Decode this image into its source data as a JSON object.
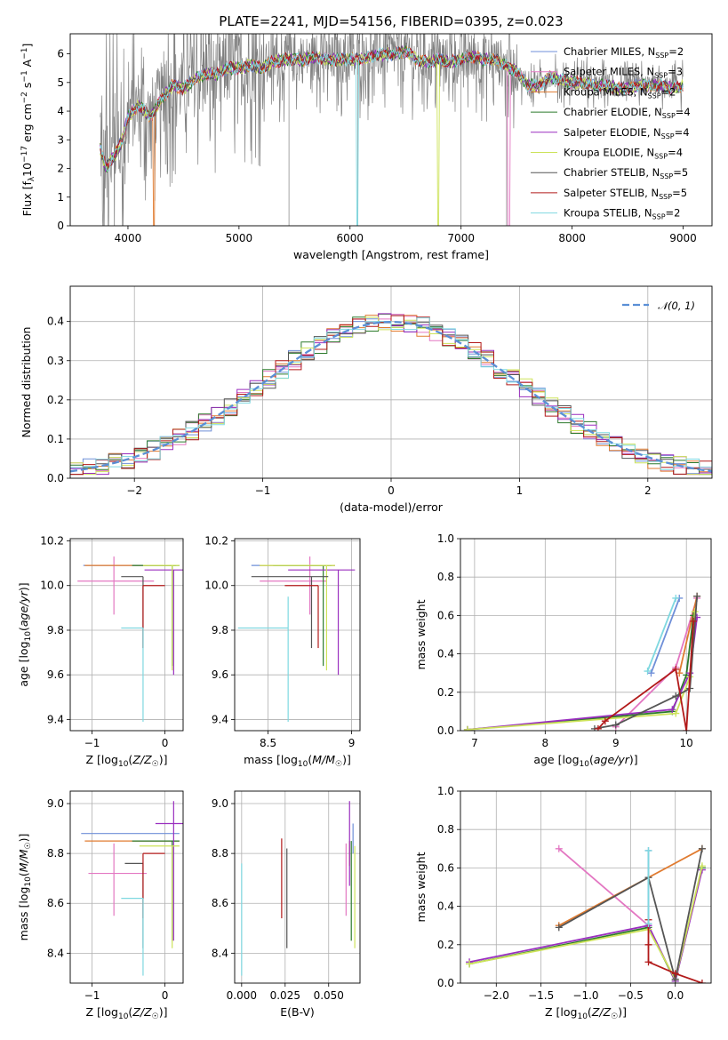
{
  "figure_title": "PLATE=2241, MJD=54156, FIBERID=0395, z=0.023",
  "models": [
    {
      "name": "Chabrier MILES",
      "nssp": "2",
      "color": "#6f8fd8"
    },
    {
      "name": "Salpeter MILES",
      "nssp": "3",
      "color": "#e377c2"
    },
    {
      "name": "Kroupa MILES",
      "nssp": "2",
      "color": "#e07b30"
    },
    {
      "name": "Chabrier ELODIE",
      "nssp": "4",
      "color": "#2c7a2c"
    },
    {
      "name": "Salpeter ELODIE",
      "nssp": "4",
      "color": "#9a2fbf"
    },
    {
      "name": "Kroupa ELODIE",
      "nssp": "4",
      "color": "#cde35a"
    },
    {
      "name": "Chabrier STELIB",
      "nssp": "5",
      "color": "#555555"
    },
    {
      "name": "Salpeter STELIB",
      "nssp": "5",
      "color": "#b21a1a"
    },
    {
      "name": "Kroupa STELIB",
      "nssp": "2",
      "color": "#7fd8e0"
    }
  ],
  "chart_data": [
    {
      "id": "spectrum",
      "type": "line",
      "xlabel": "wavelength [Angstrom, rest frame]",
      "ylabel": "Flux [f_λ 10^-17 erg cm^-2 s^-1 A^-1]",
      "xlim": [
        3480,
        9260
      ],
      "ylim": [
        0,
        6.7
      ],
      "xticks": [
        4000,
        5000,
        6000,
        7000,
        8000,
        9000
      ],
      "yticks": [
        0,
        1,
        2,
        3,
        4,
        5,
        6
      ],
      "data_color": "#808080",
      "legend_position": "upper-right",
      "model_spectrum": {
        "x": [
          3750,
          3800,
          3850,
          3900,
          3950,
          4000,
          4100,
          4200,
          4300,
          4400,
          4500,
          4600,
          4700,
          4800,
          4900,
          5000,
          5100,
          5200,
          5300,
          5400,
          5500,
          5600,
          5700,
          5800,
          5900,
          6000,
          6100,
          6200,
          6300,
          6400,
          6500,
          6600,
          6700,
          6800,
          6900,
          7000,
          7100,
          7200,
          7300,
          7400,
          7500,
          7600,
          7700,
          7800,
          7900,
          8000,
          8100,
          8200,
          8300,
          8400,
          8500,
          8600,
          8700,
          8800,
          8900,
          9000
        ],
        "y": [
          2.7,
          2.0,
          2.3,
          2.6,
          3.0,
          3.8,
          4.2,
          3.8,
          4.4,
          4.9,
          4.8,
          5.1,
          5.3,
          5.3,
          5.5,
          5.5,
          5.6,
          5.5,
          5.7,
          5.8,
          5.8,
          5.8,
          5.9,
          5.8,
          5.8,
          5.8,
          5.8,
          5.9,
          6.0,
          6.0,
          6.1,
          5.8,
          5.7,
          5.8,
          5.7,
          5.8,
          5.9,
          5.8,
          5.8,
          5.6,
          5.4,
          4.9,
          4.9,
          5.2,
          5.1,
          5.0,
          5.0,
          4.9,
          4.9,
          4.8,
          4.8,
          4.9,
          4.9,
          4.9,
          4.8,
          4.9
        ]
      },
      "model_dropouts": [
        {
          "model": "Kroupa MILES",
          "from": 4230,
          "to": 4240
        },
        {
          "model": "Kroupa STELIB",
          "from": 6060,
          "to": 6070
        },
        {
          "model": "Kroupa ELODIE",
          "from": 6790,
          "to": 6800
        },
        {
          "model": "Salpeter MILES",
          "from": 7420,
          "to": 7440
        }
      ]
    },
    {
      "id": "residuals",
      "type": "histogram",
      "xlabel": "(data-model)/error",
      "ylabel": "Normed distribution",
      "xlim": [
        -2.5,
        2.5
      ],
      "ylim": [
        0,
        0.49
      ],
      "xticks": [
        -2,
        -1,
        0,
        1,
        2
      ],
      "yticks": [
        0.0,
        0.1,
        0.2,
        0.3,
        0.4
      ],
      "grid": true,
      "legend_position": "upper-right",
      "reference_label": "N(0,1)",
      "bin_edges_start": -2.5,
      "bin_width": 0.1
    },
    {
      "id": "age_vs_Z",
      "type": "errorbar",
      "xlabel": "Z [log10(Z/Z☉)]",
      "ylabel": "age [log10(age/yr)]",
      "xlim": [
        -1.3,
        0.25
      ],
      "ylim": [
        9.35,
        10.21
      ],
      "xticks": [
        -1,
        0
      ],
      "yticks": [
        9.4,
        9.6,
        9.8,
        10.0,
        10.2
      ],
      "grid": true,
      "points": [
        {
          "model": "Chabrier MILES",
          "x": -0.15,
          "xerr": [
            0.97,
            0.3
          ],
          "y": 10.09,
          "yerr": [
            0,
            0
          ]
        },
        {
          "model": "Salpeter MILES",
          "x": -0.7,
          "xerr": [
            0.5,
            0.55
          ],
          "y": 10.02,
          "yerr": [
            0.15,
            0.11
          ]
        },
        {
          "model": "Kroupa MILES",
          "x": -0.1,
          "xerr": [
            1.0,
            0.25
          ],
          "y": 10.09,
          "yerr": [
            0,
            0
          ]
        },
        {
          "model": "Chabrier ELODIE",
          "x": 0.1,
          "xerr": [
            0.55,
            0.1
          ],
          "y": 10.09,
          "yerr": [
            0.45,
            0
          ]
        },
        {
          "model": "Salpeter ELODIE",
          "x": 0.12,
          "xerr": [
            0.4,
            0.15
          ],
          "y": 10.07,
          "yerr": [
            0.47,
            0
          ]
        },
        {
          "model": "Kroupa ELODIE",
          "x": 0.1,
          "xerr": [
            0.4,
            0.1
          ],
          "y": 10.09,
          "yerr": [
            0.47,
            0
          ]
        },
        {
          "model": "Chabrier STELIB",
          "x": -0.3,
          "xerr": [
            0.3,
            0
          ],
          "y": 10.04,
          "yerr": [
            0.32,
            0
          ]
        },
        {
          "model": "Salpeter STELIB",
          "x": -0.3,
          "xerr": [
            0,
            0.3
          ],
          "y": 10.0,
          "yerr": [
            0.28,
            0
          ]
        },
        {
          "model": "Kroupa STELIB",
          "x": -0.3,
          "xerr": [
            0.3,
            0
          ],
          "y": 9.81,
          "yerr": [
            0.42,
            0
          ]
        }
      ]
    },
    {
      "id": "age_vs_mass",
      "type": "errorbar",
      "xlabel": "mass [log10(M/M☉)]",
      "ylabel": "",
      "xlim": [
        8.3,
        9.05
      ],
      "ylim": [
        9.35,
        10.21
      ],
      "xticks": [
        8.5,
        9.0
      ],
      "yticks": [
        9.4,
        9.6,
        9.8,
        10.0,
        10.2
      ],
      "grid": true,
      "points": [
        {
          "model": "Chabrier MILES",
          "x": 8.88,
          "xerr": [
            0.48,
            0.02
          ],
          "y": 10.09,
          "yerr": [
            0,
            0
          ]
        },
        {
          "model": "Salpeter MILES",
          "x": 8.75,
          "xerr": [
            0.3,
            0.1
          ],
          "y": 10.02,
          "yerr": [
            0.15,
            0.11
          ]
        },
        {
          "model": "Kroupa MILES",
          "x": 8.85,
          "xerr": [
            0.4,
            0.05
          ],
          "y": 10.09,
          "yerr": [
            0,
            0
          ]
        },
        {
          "model": "Chabrier ELODIE",
          "x": 8.83,
          "xerr": [
            0.3,
            0.05
          ],
          "y": 10.09,
          "yerr": [
            0.45,
            0
          ]
        },
        {
          "model": "Salpeter ELODIE",
          "x": 8.92,
          "xerr": [
            0.3,
            0.1
          ],
          "y": 10.07,
          "yerr": [
            0.47,
            0
          ]
        },
        {
          "model": "Kroupa ELODIE",
          "x": 8.85,
          "xerr": [
            0.4,
            0.05
          ],
          "y": 10.09,
          "yerr": [
            0.47,
            0
          ]
        },
        {
          "model": "Chabrier STELIB",
          "x": 8.76,
          "xerr": [
            0.36,
            0.1
          ],
          "y": 10.04,
          "yerr": [
            0.32,
            0
          ]
        },
        {
          "model": "Salpeter STELIB",
          "x": 8.8,
          "xerr": [
            0.2,
            0
          ],
          "y": 10.0,
          "yerr": [
            0.28,
            0
          ]
        },
        {
          "model": "Kroupa STELIB",
          "x": 8.62,
          "xerr": [
            0.3,
            0
          ],
          "y": 9.81,
          "yerr": [
            0.42,
            0.14
          ]
        }
      ]
    },
    {
      "id": "mass_weight_vs_age",
      "type": "line-markers",
      "xlabel": "age [log10(age/yr)]",
      "ylabel": "mass weight",
      "xlim": [
        6.8,
        10.35
      ],
      "ylim": [
        0,
        1.0
      ],
      "xticks": [
        7,
        8,
        9,
        10
      ],
      "yticks": [
        0.0,
        0.2,
        0.4,
        0.6,
        0.8,
        1.0
      ],
      "grid": true,
      "series": [
        {
          "model": "Chabrier MILES",
          "x": [
            9.5,
            9.9
          ],
          "y": [
            0.3,
            0.69
          ]
        },
        {
          "model": "Salpeter MILES",
          "x": [
            9.0,
            9.85,
            10.15
          ],
          "y": [
            0.02,
            0.33,
            0.69
          ]
        },
        {
          "model": "Kroupa MILES",
          "x": [
            9.9,
            10.15
          ],
          "y": [
            0.3,
            0.7
          ]
        },
        {
          "model": "Chabrier ELODIE",
          "x": [
            6.9,
            9.8,
            10.0,
            10.1
          ],
          "y": [
            0.005,
            0.1,
            0.29,
            0.6
          ]
        },
        {
          "model": "Salpeter ELODIE",
          "x": [
            6.9,
            9.8,
            10.05,
            10.15
          ],
          "y": [
            0.005,
            0.11,
            0.3,
            0.59
          ]
        },
        {
          "model": "Kroupa ELODIE",
          "x": [
            6.9,
            9.85,
            10.05,
            10.12
          ],
          "y": [
            0.005,
            0.09,
            0.28,
            0.62
          ]
        },
        {
          "model": "Chabrier STELIB",
          "x": [
            8.7,
            9.0,
            9.85,
            10.05,
            10.15
          ],
          "y": [
            0.01,
            0.03,
            0.18,
            0.22,
            0.7
          ]
        },
        {
          "model": "Salpeter STELIB",
          "x": [
            8.75,
            8.85,
            9.85,
            10.0,
            10.1
          ],
          "y": [
            0.01,
            0.05,
            0.32,
            0.0,
            0.57
          ]
        },
        {
          "model": "Kroupa STELIB",
          "x": [
            9.45,
            9.85
          ],
          "y": [
            0.31,
            0.69
          ]
        }
      ]
    },
    {
      "id": "mass_vs_Z",
      "type": "errorbar",
      "xlabel": "Z [log10(Z/Z☉)]",
      "ylabel": "mass [log10(M/M☉)]",
      "xlim": [
        -1.3,
        0.25
      ],
      "ylim": [
        8.28,
        9.05
      ],
      "xticks": [
        -1,
        0
      ],
      "yticks": [
        8.4,
        8.6,
        8.8,
        9.0
      ],
      "grid": true,
      "points": [
        {
          "model": "Chabrier MILES",
          "x": -0.15,
          "xerr": [
            1.0,
            0.35
          ],
          "y": 8.88,
          "yerr": [
            0,
            0
          ]
        },
        {
          "model": "Salpeter MILES",
          "x": -0.7,
          "xerr": [
            0.35,
            0.45
          ],
          "y": 8.72,
          "yerr": [
            0.17,
            0.12
          ]
        },
        {
          "model": "Kroupa MILES",
          "x": -0.1,
          "xerr": [
            1.0,
            0.3
          ],
          "y": 8.85,
          "yerr": [
            0,
            0
          ]
        },
        {
          "model": "Chabrier ELODIE",
          "x": 0.1,
          "xerr": [
            0.55,
            0.1
          ],
          "y": 8.85,
          "yerr": [
            0.4,
            0
          ]
        },
        {
          "model": "Salpeter ELODIE",
          "x": 0.12,
          "xerr": [
            0.25,
            0.15
          ],
          "y": 8.92,
          "yerr": [
            0.47,
            0.09
          ]
        },
        {
          "model": "Kroupa ELODIE",
          "x": 0.1,
          "xerr": [
            0.45,
            0.1
          ],
          "y": 8.83,
          "yerr": [
            0.41,
            0
          ]
        },
        {
          "model": "Chabrier STELIB",
          "x": -0.3,
          "xerr": [
            0.25,
            0
          ],
          "y": 8.76,
          "yerr": [
            0.34,
            0
          ]
        },
        {
          "model": "Salpeter STELIB",
          "x": -0.3,
          "xerr": [
            0,
            0.3
          ],
          "y": 8.8,
          "yerr": [
            0.26,
            0
          ]
        },
        {
          "model": "Kroupa STELIB",
          "x": -0.3,
          "xerr": [
            0.3,
            0
          ],
          "y": 8.62,
          "yerr": [
            0.31,
            0
          ]
        }
      ]
    },
    {
      "id": "mass_vs_EBV",
      "type": "errorbar",
      "xlabel": "E(B-V)",
      "ylabel": "",
      "xlim": [
        -0.004,
        0.068
      ],
      "ylim": [
        8.28,
        9.05
      ],
      "xticks": [
        0.0,
        0.025,
        0.05
      ],
      "xticklabels": [
        "0.000",
        "0.025",
        "0.050"
      ],
      "yticks": [
        8.4,
        8.6,
        8.8,
        9.0
      ],
      "grid": true,
      "points": [
        {
          "model": "Chabrier MILES",
          "x": 0.064,
          "xerr": [
            0,
            0
          ],
          "y": 8.88,
          "yerr": [
            0.08,
            0.04
          ]
        },
        {
          "model": "Salpeter MILES",
          "x": 0.06,
          "xerr": [
            0,
            0
          ],
          "y": 8.72,
          "yerr": [
            0.17,
            0.12
          ]
        },
        {
          "model": "Kroupa MILES",
          "x": 0.062,
          "xerr": [
            0,
            0
          ],
          "y": 8.85,
          "yerr": [
            0.1,
            0
          ]
        },
        {
          "model": "Chabrier ELODIE",
          "x": 0.063,
          "xerr": [
            0,
            0
          ],
          "y": 8.85,
          "yerr": [
            0.4,
            0
          ]
        },
        {
          "model": "Salpeter ELODIE",
          "x": 0.062,
          "xerr": [
            0,
            0
          ],
          "y": 8.92,
          "yerr": [
            0.25,
            0.09
          ]
        },
        {
          "model": "Kroupa ELODIE",
          "x": 0.065,
          "xerr": [
            0,
            0
          ],
          "y": 8.83,
          "yerr": [
            0.41,
            0
          ]
        },
        {
          "model": "Chabrier STELIB",
          "x": 0.026,
          "xerr": [
            0,
            0
          ],
          "y": 8.76,
          "yerr": [
            0.34,
            0.06
          ]
        },
        {
          "model": "Salpeter STELIB",
          "x": 0.023,
          "xerr": [
            0,
            0
          ],
          "y": 8.8,
          "yerr": [
            0.26,
            0.06
          ]
        },
        {
          "model": "Kroupa STELIB",
          "x": 0.0,
          "xerr": [
            0,
            0
          ],
          "y": 8.62,
          "yerr": [
            0.31,
            0.14
          ]
        }
      ]
    },
    {
      "id": "mass_weight_vs_Z",
      "type": "line-markers",
      "xlabel": "Z [log10(Z/Z☉)]",
      "ylabel": "mass weight",
      "xlim": [
        -2.4,
        0.4
      ],
      "ylim": [
        0,
        1.0
      ],
      "xticks": [
        -2.0,
        -1.5,
        -1.0,
        -0.5,
        0.0
      ],
      "xticklabels": [
        "−2.0",
        "−1.5",
        "−1.0",
        "−0.5",
        "0.0"
      ],
      "yticks": [
        0.0,
        0.2,
        0.4,
        0.6,
        0.8,
        1.0
      ],
      "grid": true,
      "series": [
        {
          "model": "Chabrier MILES",
          "x": [
            -0.3,
            -0.3
          ],
          "y": [
            0.3,
            0.69
          ]
        },
        {
          "model": "Salpeter MILES",
          "x": [
            -1.3,
            -0.3
          ],
          "y": [
            0.7,
            0.3
          ]
        },
        {
          "model": "Kroupa MILES",
          "x": [
            -1.3,
            0.3
          ],
          "y": [
            0.3,
            0.7
          ]
        },
        {
          "model": "Chabrier ELODIE",
          "x": [
            -2.3,
            -0.3,
            0.0,
            0.3
          ],
          "y": [
            0.1,
            0.29,
            0.01,
            0.6
          ]
        },
        {
          "model": "Salpeter ELODIE",
          "x": [
            -2.3,
            -0.3,
            0.0,
            0.3
          ],
          "y": [
            0.11,
            0.3,
            0.01,
            0.59
          ]
        },
        {
          "model": "Kroupa ELODIE",
          "x": [
            -2.3,
            -0.3,
            0.0,
            0.3
          ],
          "y": [
            0.1,
            0.28,
            0.02,
            0.61
          ]
        },
        {
          "model": "Chabrier STELIB",
          "x": [
            -1.3,
            -0.3,
            0.0,
            0.3
          ],
          "y": [
            0.29,
            0.55,
            0.02,
            0.7
          ]
        },
        {
          "model": "Salpeter STELIB",
          "x": [
            -0.3,
            -0.3,
            -0.3,
            0.0,
            0.3
          ],
          "y": [
            0.33,
            0.2,
            0.11,
            0.05,
            0.0
          ]
        },
        {
          "model": "Kroupa STELIB",
          "x": [
            -0.3,
            -0.3
          ],
          "y": [
            0.31,
            0.69
          ]
        }
      ]
    }
  ]
}
